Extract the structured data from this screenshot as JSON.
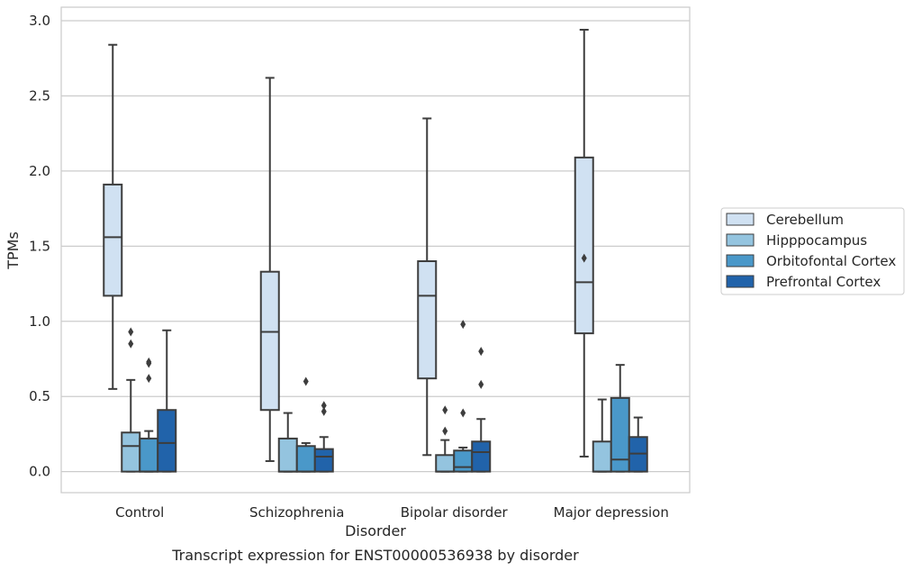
{
  "chart_data": {
    "type": "box",
    "caption": "Transcript expression for ENST00000536938 by disorder",
    "xlabel": "Disorder",
    "ylabel": "TPMs",
    "ylim": [
      -0.14,
      3.09
    ],
    "yticks": [
      0.0,
      0.5,
      1.0,
      1.5,
      2.0,
      2.5,
      3.0
    ],
    "ytick_labels": [
      "0.0",
      "0.5",
      "1.0",
      "1.5",
      "2.0",
      "2.5",
      "3.0"
    ],
    "grid": "horizontal",
    "legend_placement": "right",
    "categories": [
      "Control",
      "Schizophrenia",
      "Bipolar disorder",
      "Major depression"
    ],
    "series": [
      {
        "name": "Cerebellum",
        "color": "#d0e1f2",
        "boxes": [
          {
            "whislo": 0.55,
            "q1": 1.17,
            "med": 1.56,
            "q3": 1.91,
            "whishi": 2.84,
            "fliers": []
          },
          {
            "whislo": 0.07,
            "q1": 0.41,
            "med": 0.93,
            "q3": 1.33,
            "whishi": 2.62,
            "fliers": []
          },
          {
            "whislo": 0.11,
            "q1": 0.62,
            "med": 1.17,
            "q3": 1.4,
            "whishi": 2.35,
            "fliers": []
          },
          {
            "whislo": 0.1,
            "q1": 0.92,
            "med": 1.26,
            "q3": 2.09,
            "whishi": 2.94,
            "fliers": [
              1.42
            ]
          }
        ]
      },
      {
        "name": "Hipppocampus",
        "color": "#94c4df",
        "boxes": [
          {
            "whislo": 0.0,
            "q1": 0.0,
            "med": 0.17,
            "q3": 0.26,
            "whishi": 0.61,
            "fliers": [
              0.93,
              0.85
            ]
          },
          {
            "whislo": 0.0,
            "q1": 0.0,
            "med": 0.0,
            "q3": 0.22,
            "whishi": 0.39,
            "fliers": []
          },
          {
            "whislo": 0.0,
            "q1": 0.0,
            "med": 0.0,
            "q3": 0.11,
            "whishi": 0.21,
            "fliers": [
              0.41,
              0.27
            ]
          },
          {
            "whislo": 0.0,
            "q1": 0.0,
            "med": 0.0,
            "q3": 0.2,
            "whishi": 0.48,
            "fliers": []
          }
        ]
      },
      {
        "name": "Orbitofontal Cortex",
        "color": "#4a98c9",
        "boxes": [
          {
            "whislo": 0.0,
            "q1": 0.0,
            "med": 0.0,
            "q3": 0.22,
            "whishi": 0.27,
            "fliers": [
              0.73,
              0.72,
              0.62
            ]
          },
          {
            "whislo": 0.0,
            "q1": 0.0,
            "med": 0.0,
            "q3": 0.17,
            "whishi": 0.19,
            "fliers": [
              0.6
            ]
          },
          {
            "whislo": 0.0,
            "q1": 0.0,
            "med": 0.03,
            "q3": 0.14,
            "whishi": 0.16,
            "fliers": [
              0.98,
              0.39
            ]
          },
          {
            "whislo": 0.0,
            "q1": 0.0,
            "med": 0.08,
            "q3": 0.49,
            "whishi": 0.71,
            "fliers": []
          }
        ]
      },
      {
        "name": "Prefrontal Cortex",
        "color": "#2163aa",
        "boxes": [
          {
            "whislo": 0.0,
            "q1": 0.0,
            "med": 0.19,
            "q3": 0.41,
            "whishi": 0.94,
            "fliers": []
          },
          {
            "whislo": 0.0,
            "q1": 0.0,
            "med": 0.1,
            "q3": 0.15,
            "whishi": 0.23,
            "fliers": [
              0.44,
              0.4
            ]
          },
          {
            "whislo": 0.0,
            "q1": 0.0,
            "med": 0.13,
            "q3": 0.2,
            "whishi": 0.35,
            "fliers": [
              0.8,
              0.58
            ]
          },
          {
            "whislo": 0.0,
            "q1": 0.0,
            "med": 0.12,
            "q3": 0.23,
            "whishi": 0.36,
            "fliers": []
          }
        ]
      }
    ]
  }
}
